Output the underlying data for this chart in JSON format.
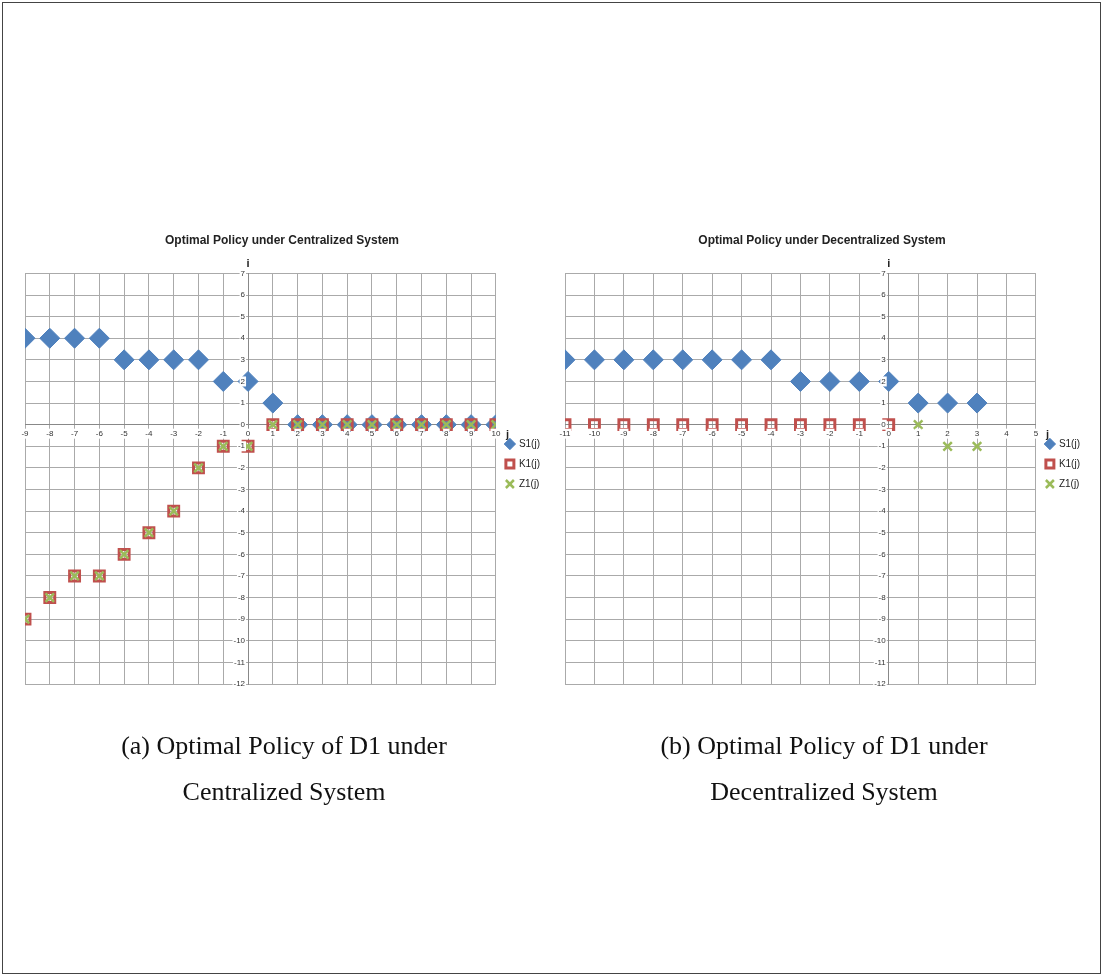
{
  "chart_data": [
    {
      "type": "scatter",
      "title": "Optimal Policy under Centralized System",
      "xlabel": "j",
      "ylabel": "i",
      "annotations": [
        "(a) Optimal Policy of D1 under Centralized System"
      ],
      "x": [
        -9,
        -8,
        -7,
        -6,
        -5,
        -4,
        -3,
        -2,
        -1,
        0,
        1,
        2,
        3,
        4,
        5,
        6,
        7,
        8,
        9,
        10
      ],
      "series": [
        {
          "name": "S1(j)",
          "color": "#4f81bd",
          "marker": "diamond",
          "values": [
            4,
            4,
            4,
            4,
            3,
            3,
            3,
            3,
            2,
            2,
            1,
            0,
            0,
            0,
            0,
            0,
            0,
            0,
            0,
            0
          ]
        },
        {
          "name": "K1(j)",
          "color": "#c0504d",
          "marker": "square",
          "values": [
            -9,
            -8,
            -7,
            -7,
            -6,
            -5,
            -4,
            -2,
            -1,
            -1,
            0,
            0,
            0,
            0,
            0,
            0,
            0,
            0,
            0,
            0
          ]
        },
        {
          "name": "Z1(j)",
          "color": "#9bbb59",
          "marker": "cross",
          "values": [
            -9,
            -8,
            -7,
            -7,
            -6,
            -5,
            -4,
            -2,
            -1,
            -1,
            0,
            0,
            0,
            0,
            0,
            0,
            0,
            0,
            0,
            0
          ]
        }
      ],
      "xlim": [
        -9,
        10
      ],
      "xticks": [
        -9,
        -8,
        -7,
        -6,
        -5,
        -4,
        -3,
        -2,
        -1,
        0,
        1,
        2,
        3,
        4,
        5,
        6,
        7,
        8,
        9,
        10
      ],
      "ylim": [
        -12,
        7
      ],
      "yticks": [
        -12,
        -11,
        -10,
        -9,
        -8,
        -7,
        -6,
        -5,
        -4,
        -3,
        -2,
        -1,
        0,
        1,
        2,
        3,
        4,
        5,
        6,
        7
      ],
      "grid": true,
      "legend": "right"
    },
    {
      "type": "scatter",
      "title": "Optimal Policy under Decentralized System",
      "xlabel": "j",
      "ylabel": "i",
      "annotations": [
        "(b) Optimal Policy of D1 under Decentralized System"
      ],
      "series": [
        {
          "name": "S1(j)",
          "color": "#4f81bd",
          "marker": "diamond",
          "x": [
            -11,
            -10,
            -9,
            -8,
            -7,
            -6,
            -5,
            -4,
            -3,
            -2,
            -1,
            0,
            1,
            2,
            3
          ],
          "values": [
            3,
            3,
            3,
            3,
            3,
            3,
            3,
            3,
            2,
            2,
            2,
            2,
            1,
            1,
            1
          ]
        },
        {
          "name": "K1(j)",
          "color": "#c0504d",
          "marker": "square",
          "x": [
            -11,
            -10,
            -9,
            -8,
            -7,
            -6,
            -5,
            -4,
            -3,
            -2,
            -1,
            0
          ],
          "values": [
            0,
            0,
            0,
            0,
            0,
            0,
            0,
            0,
            0,
            0,
            0,
            0
          ]
        },
        {
          "name": "Z1(j)",
          "color": "#9bbb59",
          "marker": "cross",
          "x": [
            1,
            2,
            3
          ],
          "values": [
            0,
            -1,
            -1
          ]
        }
      ],
      "xlim": [
        -11,
        5
      ],
      "xticks": [
        -11,
        -10,
        -9,
        -8,
        -7,
        -6,
        -5,
        -4,
        -3,
        -2,
        -1,
        0,
        1,
        2,
        3,
        4,
        5
      ],
      "ylim": [
        -12,
        7
      ],
      "yticks": [
        -12,
        -11,
        -10,
        -9,
        -8,
        -7,
        -6,
        -5,
        -4,
        -3,
        -2,
        -1,
        0,
        1,
        2,
        3,
        4,
        5,
        6,
        7
      ],
      "grid": true,
      "legend": "right"
    }
  ]
}
